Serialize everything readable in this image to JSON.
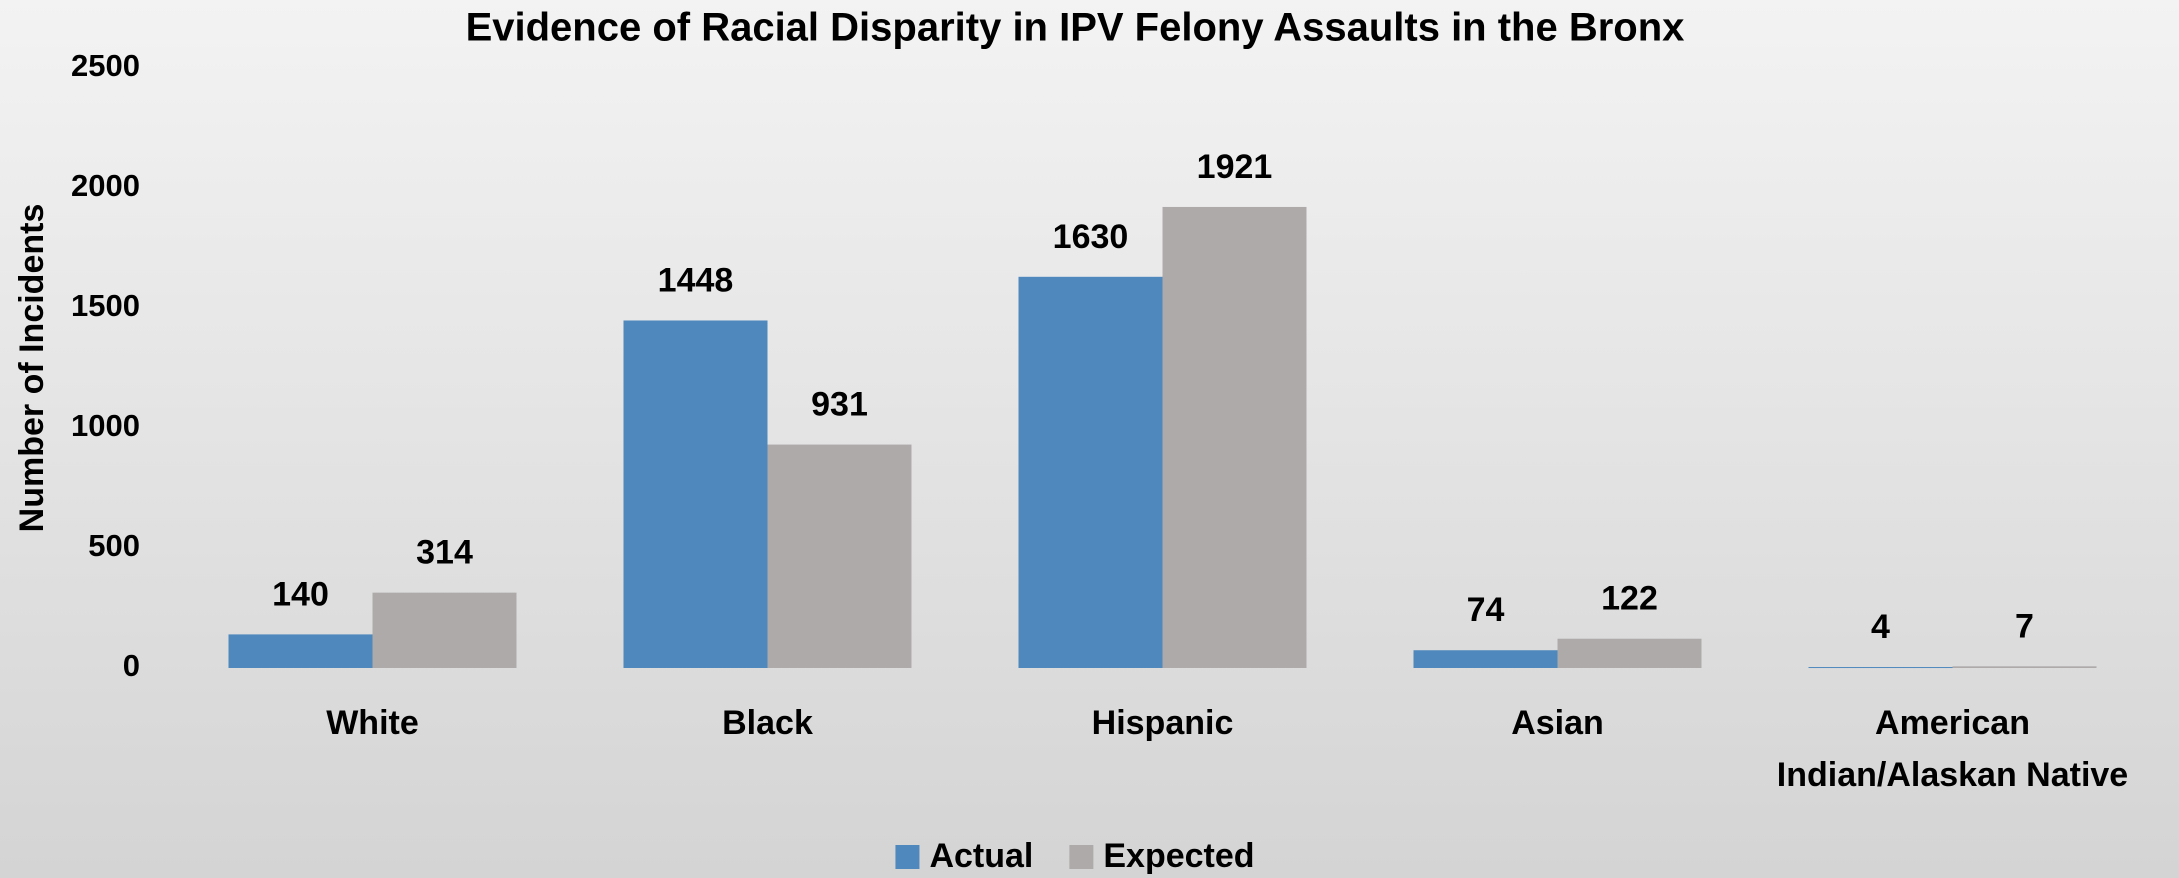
{
  "chart_data": {
    "type": "bar",
    "title": "Evidence of Racial Disparity in IPV Felony Assaults in the Bronx",
    "y_label": "Number of Incidents",
    "categories": [
      "White",
      "Black",
      "Hispanic",
      "Asian",
      "American Indian/Alaskan Native"
    ],
    "series": [
      {
        "name": "Actual",
        "color": "#4f88bd",
        "values": [
          140,
          1448,
          1630,
          74,
          4
        ]
      },
      {
        "name": "Expected",
        "color": "#aeaaaa",
        "values": [
          314,
          931,
          1921,
          122,
          7
        ]
      }
    ],
    "ylim": [
      0,
      2500
    ],
    "yticks": [
      0,
      500,
      1000,
      1500,
      2000,
      2500
    ],
    "grid": false,
    "legend": "bottom"
  }
}
